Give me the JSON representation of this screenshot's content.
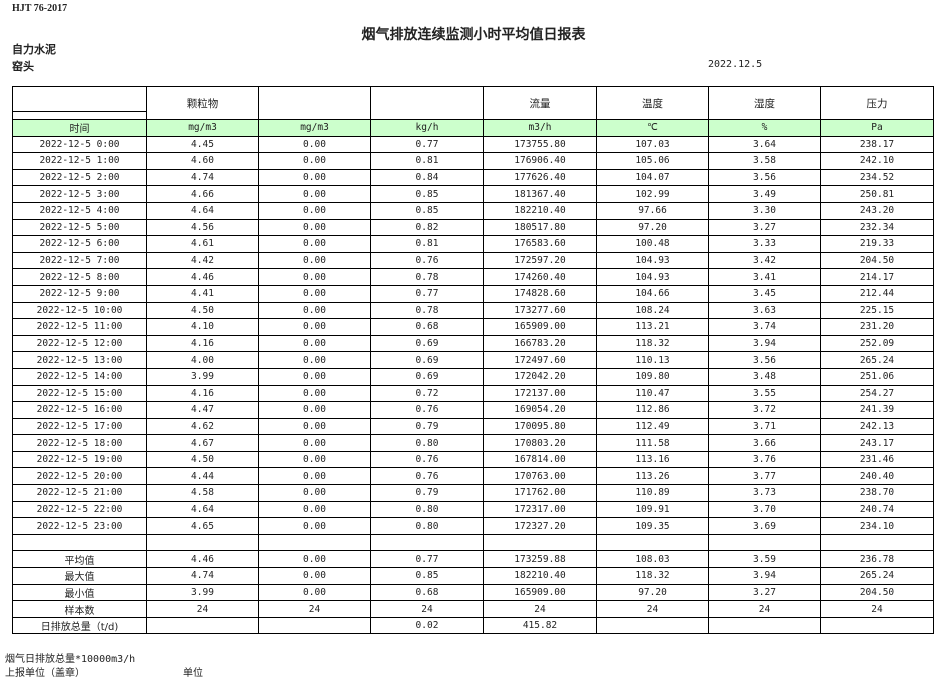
{
  "standard": "HJT 76-2017",
  "title": "烟气排放连续监测小时平均值日报表",
  "company": "自力水泥",
  "site": "窑头",
  "date": "2022.12.5",
  "headers": [
    "",
    "颗粒物",
    "",
    "",
    "流量",
    "温度",
    "湿度",
    "压力"
  ],
  "units": [
    "时间",
    "mg/m3",
    "mg/m3",
    "kg/h",
    "m3/h",
    "℃",
    "%",
    "Pa"
  ],
  "rows": [
    [
      "2022-12-5 0:00",
      "4.45",
      "0.00",
      "0.77",
      "173755.80",
      "107.03",
      "3.64",
      "238.17"
    ],
    [
      "2022-12-5 1:00",
      "4.60",
      "0.00",
      "0.81",
      "176906.40",
      "105.06",
      "3.58",
      "242.10"
    ],
    [
      "2022-12-5 2:00",
      "4.74",
      "0.00",
      "0.84",
      "177626.40",
      "104.07",
      "3.56",
      "234.52"
    ],
    [
      "2022-12-5 3:00",
      "4.66",
      "0.00",
      "0.85",
      "181367.40",
      "102.99",
      "3.49",
      "250.81"
    ],
    [
      "2022-12-5 4:00",
      "4.64",
      "0.00",
      "0.85",
      "182210.40",
      "97.66",
      "3.30",
      "243.20"
    ],
    [
      "2022-12-5 5:00",
      "4.56",
      "0.00",
      "0.82",
      "180517.80",
      "97.20",
      "3.27",
      "232.34"
    ],
    [
      "2022-12-5 6:00",
      "4.61",
      "0.00",
      "0.81",
      "176583.60",
      "100.48",
      "3.33",
      "219.33"
    ],
    [
      "2022-12-5 7:00",
      "4.42",
      "0.00",
      "0.76",
      "172597.20",
      "104.93",
      "3.42",
      "204.50"
    ],
    [
      "2022-12-5 8:00",
      "4.46",
      "0.00",
      "0.78",
      "174260.40",
      "104.93",
      "3.41",
      "214.17"
    ],
    [
      "2022-12-5 9:00",
      "4.41",
      "0.00",
      "0.77",
      "174828.60",
      "104.66",
      "3.45",
      "212.44"
    ],
    [
      "2022-12-5 10:00",
      "4.50",
      "0.00",
      "0.78",
      "173277.60",
      "108.24",
      "3.63",
      "225.15"
    ],
    [
      "2022-12-5 11:00",
      "4.10",
      "0.00",
      "0.68",
      "165909.00",
      "113.21",
      "3.74",
      "231.20"
    ],
    [
      "2022-12-5 12:00",
      "4.16",
      "0.00",
      "0.69",
      "166783.20",
      "118.32",
      "3.94",
      "252.09"
    ],
    [
      "2022-12-5 13:00",
      "4.00",
      "0.00",
      "0.69",
      "172497.60",
      "110.13",
      "3.56",
      "265.24"
    ],
    [
      "2022-12-5 14:00",
      "3.99",
      "0.00",
      "0.69",
      "172042.20",
      "109.80",
      "3.48",
      "251.06"
    ],
    [
      "2022-12-5 15:00",
      "4.16",
      "0.00",
      "0.72",
      "172137.00",
      "110.47",
      "3.55",
      "254.27"
    ],
    [
      "2022-12-5 16:00",
      "4.47",
      "0.00",
      "0.76",
      "169054.20",
      "112.86",
      "3.72",
      "241.39"
    ],
    [
      "2022-12-5 17:00",
      "4.62",
      "0.00",
      "0.79",
      "170095.80",
      "112.49",
      "3.71",
      "242.13"
    ],
    [
      "2022-12-5 18:00",
      "4.67",
      "0.00",
      "0.80",
      "170803.20",
      "111.58",
      "3.66",
      "243.17"
    ],
    [
      "2022-12-5 19:00",
      "4.50",
      "0.00",
      "0.76",
      "167814.00",
      "113.16",
      "3.76",
      "231.46"
    ],
    [
      "2022-12-5 20:00",
      "4.44",
      "0.00",
      "0.76",
      "170763.00",
      "113.26",
      "3.77",
      "240.40"
    ],
    [
      "2022-12-5 21:00",
      "4.58",
      "0.00",
      "0.79",
      "171762.00",
      "110.89",
      "3.73",
      "238.70"
    ],
    [
      "2022-12-5 22:00",
      "4.64",
      "0.00",
      "0.80",
      "172317.00",
      "109.91",
      "3.70",
      "240.74"
    ],
    [
      "2022-12-5 23:00",
      "4.65",
      "0.00",
      "0.80",
      "172327.20",
      "109.35",
      "3.69",
      "234.10"
    ]
  ],
  "summary": [
    [
      "平均值",
      "4.46",
      "0.00",
      "0.77",
      "173259.88",
      "108.03",
      "3.59",
      "236.78"
    ],
    [
      "最大值",
      "4.74",
      "0.00",
      "0.85",
      "182210.40",
      "118.32",
      "3.94",
      "265.24"
    ],
    [
      "最小值",
      "3.99",
      "0.00",
      "0.68",
      "165909.00",
      "97.20",
      "3.27",
      "204.50"
    ],
    [
      "样本数",
      "24",
      "24",
      "24",
      "24",
      "24",
      "24",
      "24"
    ],
    [
      "日排放总量（t/d)",
      "",
      "",
      "0.02",
      "415.82",
      "",
      "",
      ""
    ]
  ],
  "footer": {
    "note": "烟气日排放总量*10000m3/h",
    "reporter": "上报单位（盖章）",
    "unit": "单位"
  }
}
